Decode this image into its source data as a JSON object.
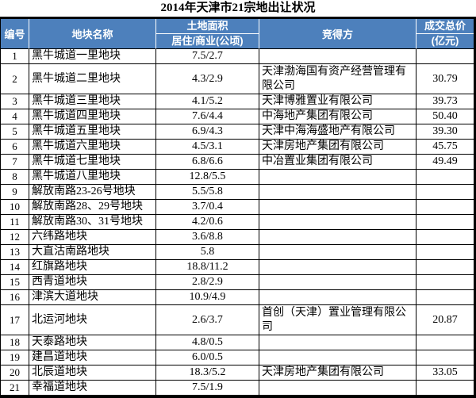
{
  "title": "2014年天津市21宗地出让状况",
  "colors": {
    "header_bg": "#4d80bc",
    "header_text": "#ffffff",
    "border": "#000000"
  },
  "table": {
    "headers": {
      "number": "编号",
      "name": "地块名称",
      "area_title": "土地面积",
      "area_sub": "居住/商业(公顷)",
      "bidder": "竞得方",
      "price_title": "成交总价",
      "price_unit": "(亿元)"
    },
    "rows": [
      {
        "id": "1",
        "name": "黑牛城道一里地块",
        "area": "7.5/2.7",
        "bidder": "",
        "price": "",
        "tall": false
      },
      {
        "id": "2",
        "name": "黑牛城道二里地块",
        "area": "4.3/2.9",
        "bidder": "天津渤海国有资产经营管理有限公司",
        "price": "30.79",
        "tall": true
      },
      {
        "id": "3",
        "name": "黑牛城道三里地块",
        "area": "4.1/5.2",
        "bidder": "天津博雅置业有限公司",
        "price": "39.73",
        "tall": false
      },
      {
        "id": "4",
        "name": "黑牛城道四里地块",
        "area": "7.6/4.4",
        "bidder": "中海地产集团有限公司",
        "price": "50.40",
        "tall": false
      },
      {
        "id": "5",
        "name": "黑牛城道五里地块",
        "area": "6.9/4.3",
        "bidder": "天津中海海盛地产有限公司",
        "price": "39.30",
        "tall": false
      },
      {
        "id": "6",
        "name": "黑牛城道六里地块",
        "area": "4.5/3.1",
        "bidder": "天津房地产集团有限公司",
        "price": "45.75",
        "tall": false
      },
      {
        "id": "7",
        "name": "黑牛城道七里地块",
        "area": "6.8/6.6",
        "bidder": "中冶置业集团有限公司",
        "price": "49.49",
        "tall": false
      },
      {
        "id": "8",
        "name": "黑牛城道八里地块",
        "area": "12.8/5.5",
        "bidder": "",
        "price": "",
        "tall": false
      },
      {
        "id": "9",
        "name": "解放南路23-26号地块",
        "area": "5.5/5.8",
        "bidder": "",
        "price": "",
        "tall": false
      },
      {
        "id": "10",
        "name": "解放南路28、29号地块",
        "area": "3.7/0.4",
        "bidder": "",
        "price": "",
        "tall": false
      },
      {
        "id": "11",
        "name": "解放南路30、31号地块",
        "area": "4.2/0.6",
        "bidder": "",
        "price": "",
        "tall": false
      },
      {
        "id": "12",
        "name": "六纬路地块",
        "area": "3.6/8.8",
        "bidder": "",
        "price": "",
        "tall": false
      },
      {
        "id": "13",
        "name": "大直沽南路地块",
        "area": "5.8",
        "bidder": "",
        "price": "",
        "tall": false
      },
      {
        "id": "14",
        "name": "红旗路地块",
        "area": "18.8/11.2",
        "bidder": "",
        "price": "",
        "tall": false
      },
      {
        "id": "15",
        "name": "西青道地块",
        "area": "2.8/2.9",
        "bidder": "",
        "price": "",
        "tall": false
      },
      {
        "id": "16",
        "name": "津滨大道地块",
        "area": "10.9/4.9",
        "bidder": "",
        "price": "",
        "tall": false
      },
      {
        "id": "17",
        "name": "北运河地块",
        "area": "2.6/3.7",
        "bidder": "首创（天津）置业管理有限公司",
        "price": "20.87",
        "tall": true
      },
      {
        "id": "18",
        "name": "天泰路地块",
        "area": "4.8/0.5",
        "bidder": "",
        "price": "",
        "tall": false
      },
      {
        "id": "19",
        "name": "建昌道地块",
        "area": "6.0/0.5",
        "bidder": "",
        "price": "",
        "tall": false
      },
      {
        "id": "20",
        "name": "北辰道地块",
        "area": "18.3/5.2",
        "bidder": "天津房地产集团有限公司",
        "price": "33.05",
        "tall": false
      },
      {
        "id": "21",
        "name": "幸福道地块",
        "area": "7.5/1.9",
        "bidder": "",
        "price": "",
        "tall": false
      }
    ]
  },
  "chart_data": {
    "type": "table",
    "title": "2014年天津市21宗地出让状况",
    "columns": [
      "编号",
      "地块名称",
      "土地面积 居住/商业(公顷)",
      "竞得方",
      "成交总价(亿元)"
    ],
    "rows": [
      [
        1,
        "黑牛城道一里地块",
        "7.5/2.7",
        "",
        null
      ],
      [
        2,
        "黑牛城道二里地块",
        "4.3/2.9",
        "天津渤海国有资产经营管理有限公司",
        30.79
      ],
      [
        3,
        "黑牛城道三里地块",
        "4.1/5.2",
        "天津博雅置业有限公司",
        39.73
      ],
      [
        4,
        "黑牛城道四里地块",
        "7.6/4.4",
        "中海地产集团有限公司",
        50.4
      ],
      [
        5,
        "黑牛城道五里地块",
        "6.9/4.3",
        "天津中海海盛地产有限公司",
        39.3
      ],
      [
        6,
        "黑牛城道六里地块",
        "4.5/3.1",
        "天津房地产集团有限公司",
        45.75
      ],
      [
        7,
        "黑牛城道七里地块",
        "6.8/6.6",
        "中冶置业集团有限公司",
        49.49
      ],
      [
        8,
        "黑牛城道八里地块",
        "12.8/5.5",
        "",
        null
      ],
      [
        9,
        "解放南路23-26号地块",
        "5.5/5.8",
        "",
        null
      ],
      [
        10,
        "解放南路28、29号地块",
        "3.7/0.4",
        "",
        null
      ],
      [
        11,
        "解放南路30、31号地块",
        "4.2/0.6",
        "",
        null
      ],
      [
        12,
        "六纬路地块",
        "3.6/8.8",
        "",
        null
      ],
      [
        13,
        "大直沽南路地块",
        "5.8",
        "",
        null
      ],
      [
        14,
        "红旗路地块",
        "18.8/11.2",
        "",
        null
      ],
      [
        15,
        "西青道地块",
        "2.8/2.9",
        "",
        null
      ],
      [
        16,
        "津滨大道地块",
        "10.9/4.9",
        "",
        null
      ],
      [
        17,
        "北运河地块",
        "2.6/3.7",
        "首创（天津）置业管理有限公司",
        20.87
      ],
      [
        18,
        "天泰路地块",
        "4.8/0.5",
        "",
        null
      ],
      [
        19,
        "建昌道地块",
        "6.0/0.5",
        "",
        null
      ],
      [
        20,
        "北辰道地块",
        "18.3/5.2",
        "天津房地产集团有限公司",
        33.05
      ],
      [
        21,
        "幸福道地块",
        "7.5/1.9",
        "",
        null
      ]
    ]
  }
}
